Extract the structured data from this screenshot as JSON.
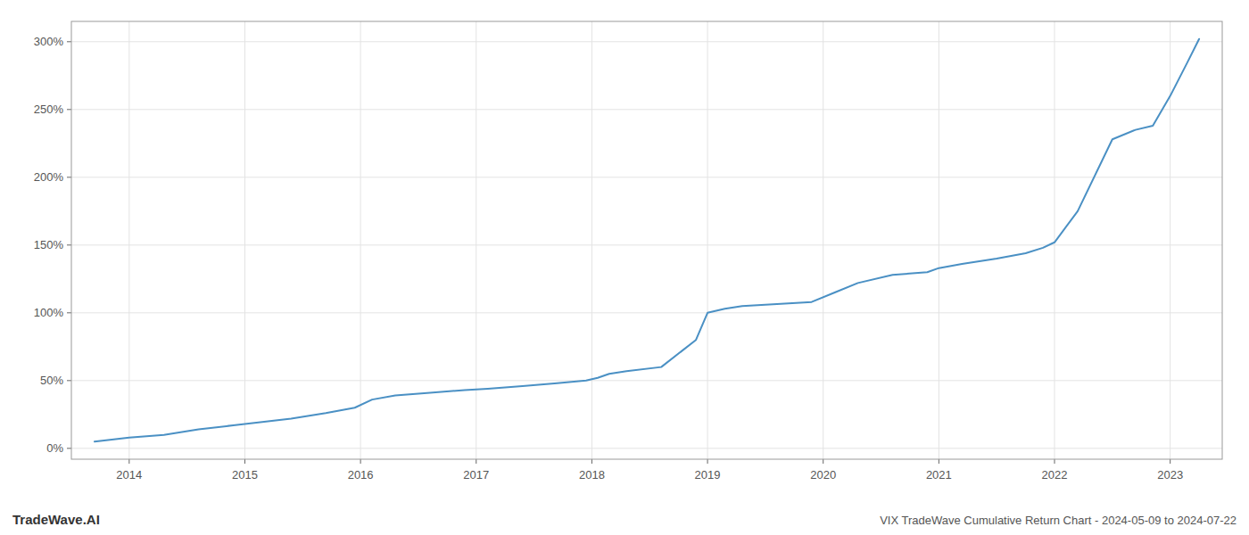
{
  "chart_data": {
    "type": "line",
    "title": "VIX TradeWave Cumulative Return Chart - 2024-05-09 to 2024-07-22",
    "annotations": [
      "TradeWave.AI"
    ],
    "color": "#4a90c4",
    "x": [
      2013.7,
      2014.0,
      2014.3,
      2014.6,
      2014.9,
      2015.1,
      2015.4,
      2015.7,
      2015.95,
      2016.1,
      2016.3,
      2016.6,
      2016.9,
      2017.1,
      2017.4,
      2017.7,
      2017.95,
      2018.05,
      2018.15,
      2018.3,
      2018.6,
      2018.9,
      2019.0,
      2019.15,
      2019.3,
      2019.5,
      2019.7,
      2019.9,
      2020.1,
      2020.3,
      2020.6,
      2020.9,
      2021.0,
      2021.2,
      2021.5,
      2021.75,
      2021.9,
      2022.0,
      2022.2,
      2022.5,
      2022.7,
      2022.85,
      2023.0,
      2023.15,
      2023.25
    ],
    "values": [
      5,
      8,
      10,
      14,
      17,
      19,
      22,
      26,
      30,
      36,
      39,
      41,
      43,
      44,
      46,
      48,
      50,
      52,
      55,
      57,
      60,
      80,
      100,
      103,
      105,
      106,
      107,
      108,
      115,
      122,
      128,
      130,
      133,
      136,
      140,
      144,
      148,
      152,
      175,
      228,
      235,
      238,
      260,
      285,
      302
    ],
    "xlim": [
      2013.5,
      2023.45
    ],
    "ylim": [
      -8,
      315
    ],
    "xticks": [
      2014,
      2015,
      2016,
      2017,
      2018,
      2019,
      2020,
      2021,
      2022,
      2023
    ],
    "yticks": [
      {
        "value": 0,
        "label": "0%"
      },
      {
        "value": 50,
        "label": "50%"
      },
      {
        "value": 100,
        "label": "100%"
      },
      {
        "value": 150,
        "label": "150%"
      },
      {
        "value": 200,
        "label": "200%"
      },
      {
        "value": 250,
        "label": "250%"
      },
      {
        "value": 300,
        "label": "300%"
      }
    ],
    "grid": true
  }
}
